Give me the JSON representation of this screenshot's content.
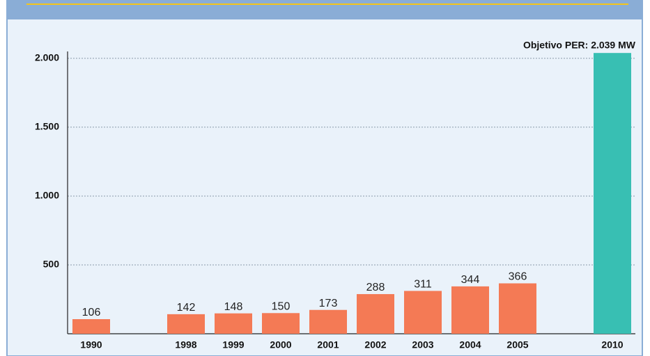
{
  "chart_data": {
    "type": "bar",
    "categories": [
      "1990",
      null,
      "1998",
      "1999",
      "2000",
      "2001",
      "2002",
      "2003",
      "2004",
      "2005",
      null,
      "2010"
    ],
    "values": [
      106,
      null,
      142,
      148,
      150,
      173,
      288,
      311,
      344,
      366,
      null,
      2039
    ],
    "value_labels": [
      "106",
      null,
      "142",
      "148",
      "150",
      "173",
      "288",
      "311",
      "344",
      "366",
      null,
      "Objetivo PER: 2.039 MW"
    ],
    "colors": [
      "#f47a55",
      null,
      "#f47a55",
      "#f47a55",
      "#f47a55",
      "#f47a55",
      "#f47a55",
      "#f47a55",
      "#f47a55",
      "#f47a55",
      null,
      "#38bfb3"
    ],
    "ylim": [
      0,
      2050
    ],
    "yticks": [
      500,
      {
        "value": 1000,
        "label": "1.000"
      },
      {
        "value": 1500,
        "label": "1.500"
      },
      {
        "value": 2000,
        "label": "2.000"
      }
    ],
    "grid": true
  }
}
